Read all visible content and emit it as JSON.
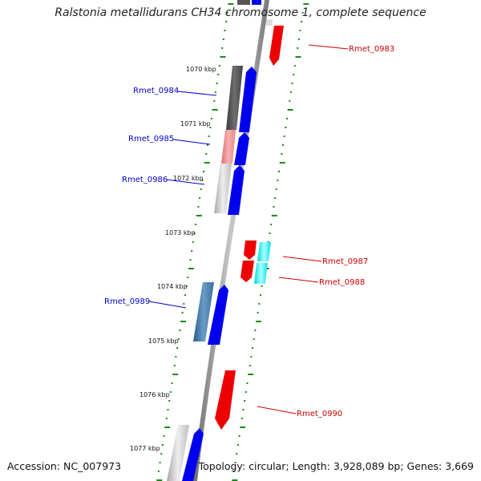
{
  "title": "Ralstonia metallidurans CH34 chromosome 1, complete sequence",
  "accession": "Accession: NC_007973",
  "summary": "Topology: circular; Length: 3,928,089 bp; Genes: 3,669",
  "colors": {
    "forward_label": "#0000cc",
    "reverse_label": "#cc0000",
    "tick": "#1a8a1a",
    "backbone": "#8c8c8c"
  },
  "position_labels": [
    "1070 kbp",
    "1071 kbp",
    "1072 kbp",
    "1073 kbp",
    "1074 kbp",
    "1075 kbp",
    "1076 kbp",
    "1077 kbp"
  ],
  "gene_labels": [
    {
      "name": "Rmet_0983",
      "strand": "reverse"
    },
    {
      "name": "Rmet_0984",
      "strand": "forward"
    },
    {
      "name": "Rmet_0985",
      "strand": "forward"
    },
    {
      "name": "Rmet_0986",
      "strand": "forward"
    },
    {
      "name": "Rmet_0987",
      "strand": "reverse"
    },
    {
      "name": "Rmet_0988",
      "strand": "reverse"
    },
    {
      "name": "Rmet_0989",
      "strand": "forward"
    },
    {
      "name": "Rmet_0990",
      "strand": "reverse"
    }
  ]
}
